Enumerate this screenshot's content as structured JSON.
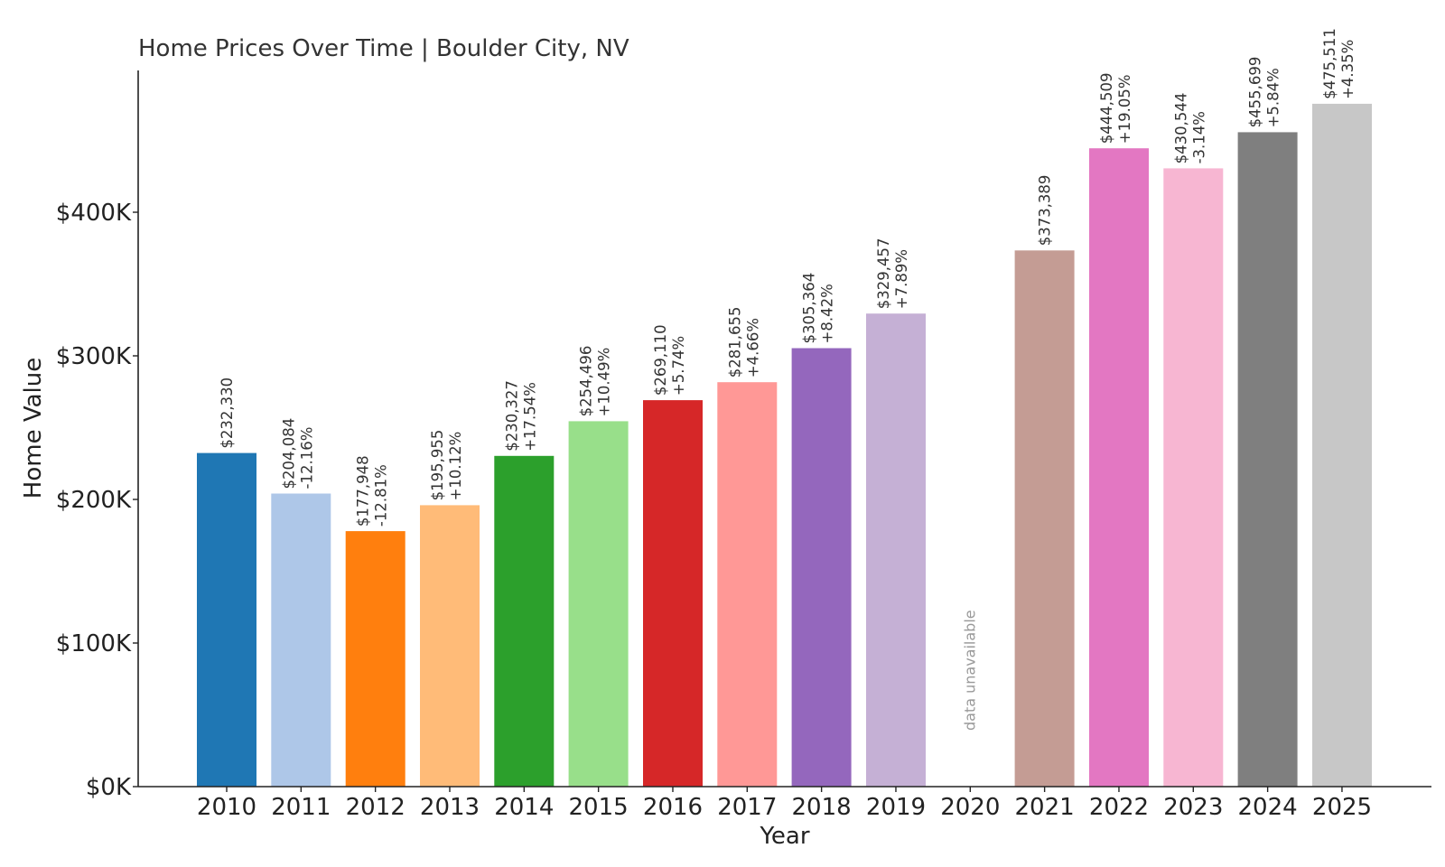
{
  "chart_data": {
    "type": "bar",
    "title": "Home Prices Over Time | Boulder City, NV",
    "xlabel": "Year",
    "ylabel": "Home Value",
    "ylim": [
      0,
      500000
    ],
    "yticks": [
      {
        "value": 0,
        "label": "$0K"
      },
      {
        "value": 100000,
        "label": "$100K"
      },
      {
        "value": 200000,
        "label": "$200K"
      },
      {
        "value": 300000,
        "label": "$300K"
      },
      {
        "value": 400000,
        "label": "$400K"
      }
    ],
    "grid": false,
    "categories": [
      "2010",
      "2011",
      "2012",
      "2013",
      "2014",
      "2015",
      "2016",
      "2017",
      "2018",
      "2019",
      "2020",
      "2021",
      "2022",
      "2023",
      "2024",
      "2025"
    ],
    "values": [
      232330,
      204084,
      177948,
      195955,
      230327,
      254496,
      269110,
      281655,
      305364,
      329457,
      null,
      373389,
      444509,
      430544,
      455699,
      475511
    ],
    "value_labels": [
      "$232,330",
      "$204,084",
      "$177,948",
      "$195,955",
      "$230,327",
      "$254,496",
      "$269,110",
      "$281,655",
      "$305,364",
      "$329,457",
      "",
      "$373,389",
      "$444,509",
      "$430,544",
      "$455,699",
      "$475,511"
    ],
    "change_labels": [
      "",
      "-12.16%",
      "-12.81%",
      "+10.12%",
      "+17.54%",
      "+10.49%",
      "+5.74%",
      "+4.66%",
      "+8.42%",
      "+7.89%",
      "",
      "",
      "+19.05%",
      "-3.14%",
      "+5.84%",
      "+4.35%"
    ],
    "missing_label": "data unavailable",
    "colors": [
      "#1f77b4",
      "#aec7e8",
      "#ff7f0e",
      "#ffbb78",
      "#2ca02c",
      "#98df8a",
      "#d62728",
      "#ff9896",
      "#9467bd",
      "#c5b0d5",
      "#8c564b",
      "#c49c94",
      "#e377c2",
      "#f7b6d2",
      "#7f7f7f",
      "#c7c7c7"
    ]
  }
}
